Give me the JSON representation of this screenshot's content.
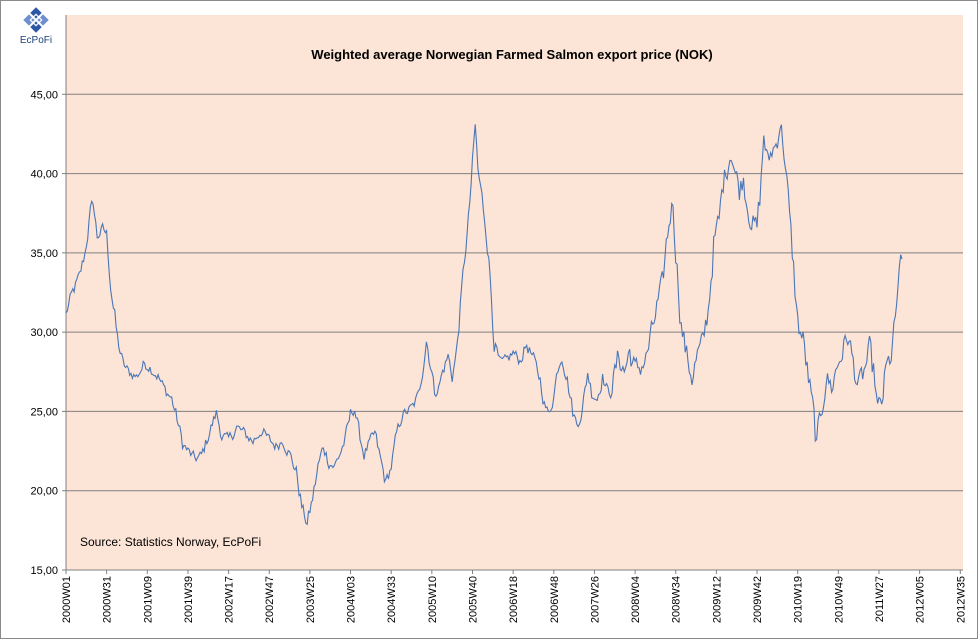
{
  "logo": {
    "text": "EcPoFi"
  },
  "chart_data": {
    "type": "line",
    "title": "Weighted average Norwegian Farmed Salmon export price (NOK)",
    "xlabel": "",
    "ylabel": "",
    "ylim": [
      15,
      50
    ],
    "y_ticks": [
      "15,00",
      "20,00",
      "25,00",
      "30,00",
      "35,00",
      "40,00",
      "45,00"
    ],
    "y_tick_values": [
      15,
      20,
      25,
      30,
      35,
      40,
      45
    ],
    "x_tick_labels": [
      "2000W01",
      "2000W31",
      "2001W09",
      "2001W39",
      "2002W17",
      "2002W47",
      "2003W25",
      "2004W03",
      "2004W33",
      "2005W10",
      "2005W40",
      "2006W18",
      "2006W48",
      "2007W26",
      "2008W04",
      "2008W34",
      "2009W12",
      "2009W42",
      "2010W19",
      "2010W49",
      "2011W27",
      "2012W05",
      "2012W35"
    ],
    "x_tick_weeks": [
      0,
      30,
      60,
      90,
      120,
      150,
      180,
      210,
      240,
      270,
      300,
      330,
      360,
      390,
      420,
      450,
      480,
      510,
      540,
      570,
      600,
      630,
      660
    ],
    "grid": true,
    "source_note": "Source: Statistics Norway, EcPoFi",
    "colors": {
      "plot_bg": "#fce4d6",
      "line": "#4a76b8",
      "grid": "#808080"
    },
    "series": [
      {
        "name": "Export price (NOK)",
        "anchors": [
          [
            0,
            31.2
          ],
          [
            5,
            32.5
          ],
          [
            10,
            33.5
          ],
          [
            14,
            35
          ],
          [
            18,
            37.5
          ],
          [
            20,
            38.2
          ],
          [
            23,
            36
          ],
          [
            27,
            36.5
          ],
          [
            30,
            36.2
          ],
          [
            33,
            33
          ],
          [
            38,
            29.5
          ],
          [
            42,
            28
          ],
          [
            46,
            27.5
          ],
          [
            52,
            27.2
          ],
          [
            58,
            28
          ],
          [
            62,
            27.8
          ],
          [
            68,
            27.2
          ],
          [
            72,
            26.5
          ],
          [
            78,
            25.8
          ],
          [
            82,
            24.5
          ],
          [
            86,
            23
          ],
          [
            90,
            22.5
          ],
          [
            95,
            22
          ],
          [
            100,
            22.2
          ],
          [
            104,
            23.2
          ],
          [
            108,
            24.2
          ],
          [
            111,
            24.9
          ],
          [
            115,
            23.5
          ],
          [
            120,
            23.2
          ],
          [
            126,
            24
          ],
          [
            132,
            23.6
          ],
          [
            138,
            23.1
          ],
          [
            144,
            23.8
          ],
          [
            150,
            23.2
          ],
          [
            155,
            22.8
          ],
          [
            160,
            23.2
          ],
          [
            165,
            22.3
          ],
          [
            170,
            21.2
          ],
          [
            174,
            19
          ],
          [
            178,
            17.9
          ],
          [
            182,
            19.5
          ],
          [
            186,
            21.5
          ],
          [
            190,
            22.8
          ],
          [
            194,
            21.8
          ],
          [
            198,
            21.5
          ],
          [
            202,
            22.3
          ],
          [
            206,
            23.2
          ],
          [
            210,
            24.8
          ],
          [
            213,
            25.2
          ],
          [
            216,
            23.8
          ],
          [
            220,
            22.3
          ],
          [
            224,
            23
          ],
          [
            228,
            23.6
          ],
          [
            232,
            22
          ],
          [
            236,
            20.5
          ],
          [
            240,
            21.5
          ],
          [
            244,
            23.5
          ],
          [
            248,
            24.8
          ],
          [
            252,
            25
          ],
          [
            256,
            25.3
          ],
          [
            260,
            26
          ],
          [
            264,
            28.2
          ],
          [
            266,
            29.5
          ],
          [
            270,
            27.5
          ],
          [
            272,
            26.2
          ],
          [
            275,
            26.5
          ],
          [
            278,
            27.5
          ],
          [
            282,
            28.5
          ],
          [
            285,
            27.2
          ],
          [
            288,
            28.6
          ],
          [
            291,
            31.5
          ],
          [
            294,
            34.5
          ],
          [
            297,
            37
          ],
          [
            300,
            40.5
          ],
          [
            302,
            43
          ],
          [
            304,
            40.2
          ],
          [
            307,
            38.5
          ],
          [
            310,
            36.5
          ],
          [
            313,
            33.5
          ],
          [
            316,
            29.5
          ],
          [
            320,
            28
          ],
          [
            325,
            28.2
          ],
          [
            330,
            28.7
          ],
          [
            335,
            28.2
          ],
          [
            340,
            29.2
          ],
          [
            345,
            28.3
          ],
          [
            350,
            27
          ],
          [
            353,
            25.5
          ],
          [
            356,
            24.8
          ],
          [
            360,
            26
          ],
          [
            363,
            27.8
          ],
          [
            366,
            28.5
          ],
          [
            370,
            27
          ],
          [
            374,
            25
          ],
          [
            377,
            24.2
          ],
          [
            381,
            25
          ],
          [
            385,
            27.5
          ],
          [
            388,
            26.2
          ],
          [
            392,
            25.8
          ],
          [
            396,
            27.2
          ],
          [
            400,
            26.2
          ],
          [
            404,
            27
          ],
          [
            408,
            28.5
          ],
          [
            412,
            27.5
          ],
          [
            416,
            28.8
          ],
          [
            420,
            27.6
          ],
          [
            424,
            27.8
          ],
          [
            428,
            28.3
          ],
          [
            432,
            29.8
          ],
          [
            436,
            31.5
          ],
          [
            440,
            32.8
          ],
          [
            443,
            35.5
          ],
          [
            446,
            37.5
          ],
          [
            448,
            38.2
          ],
          [
            451,
            34
          ],
          [
            454,
            30.5
          ],
          [
            458,
            28.5
          ],
          [
            462,
            27.2
          ],
          [
            466,
            28.5
          ],
          [
            470,
            29.3
          ],
          [
            474,
            31.5
          ],
          [
            478,
            35.5
          ],
          [
            482,
            37
          ],
          [
            485,
            39.5
          ],
          [
            488,
            40.5
          ],
          [
            491,
            41.5
          ],
          [
            494,
            40
          ],
          [
            497,
            39
          ],
          [
            500,
            39.8
          ],
          [
            503,
            38
          ],
          [
            506,
            37
          ],
          [
            510,
            36.5
          ],
          [
            513,
            39.5
          ],
          [
            515,
            42.5
          ],
          [
            518,
            40.5
          ],
          [
            521,
            41.5
          ],
          [
            524,
            41.8
          ],
          [
            527,
            43.3
          ],
          [
            530,
            41.5
          ],
          [
            534,
            37
          ],
          [
            537,
            34
          ],
          [
            540,
            30.5
          ],
          [
            544,
            29.5
          ],
          [
            548,
            27
          ],
          [
            552,
            24.5
          ],
          [
            554,
            22.8
          ],
          [
            557,
            24.8
          ],
          [
            561,
            27.2
          ],
          [
            565,
            26.5
          ],
          [
            569,
            27.8
          ],
          [
            573,
            28.8
          ],
          [
            577,
            29.8
          ],
          [
            581,
            28
          ],
          [
            585,
            26.5
          ],
          [
            589,
            27.5
          ],
          [
            593,
            28.8
          ],
          [
            597,
            27
          ],
          [
            599,
            25
          ],
          [
            602,
            25.5
          ],
          [
            605,
            27.5
          ],
          [
            609,
            28.5
          ],
          [
            612,
            30.5
          ],
          [
            614,
            33
          ],
          [
            617,
            34.6
          ]
        ]
      }
    ]
  }
}
